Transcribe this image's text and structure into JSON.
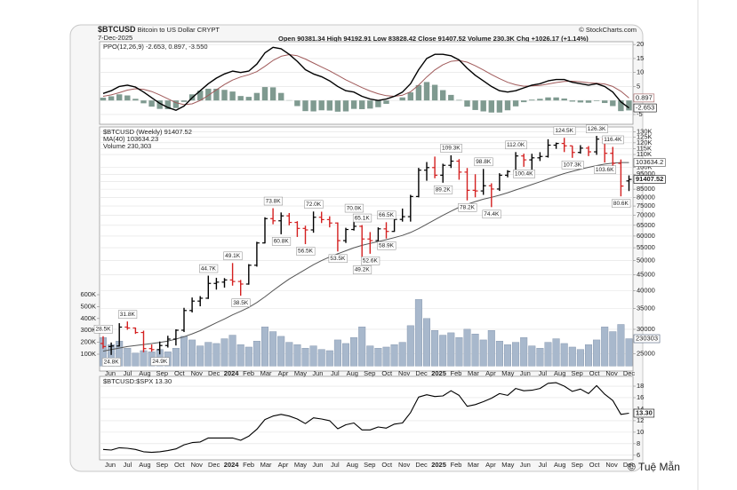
{
  "header": {
    "symbol": "$BTCUSD",
    "name": "Bitcoin to US Dollar",
    "exchange": "CRYPT",
    "date": "7-Dec-2025",
    "quote": "Open 90381.34 High 94192.91 Low 83828.42 Close 91407.52 Volume 230.3K Chg +1026.17 (+1.14%)",
    "source": "© StockCharts.com"
  },
  "watermark": "© Tuệ Mẫn",
  "x_axis": {
    "labels": [
      "Jun",
      "Jul",
      "Aug",
      "Sep",
      "Oct",
      "Nov",
      "Dec",
      "2024",
      "Feb",
      "Mar",
      "Apr",
      "May",
      "Jun",
      "Jul",
      "Aug",
      "Sep",
      "Oct",
      "Nov",
      "Dec",
      "2025",
      "Feb",
      "Mar",
      "Apr",
      "May",
      "Jun",
      "Jul",
      "Aug",
      "Sep",
      "Oct",
      "Nov",
      "Dec"
    ]
  },
  "chart_data": [
    {
      "type": "ppo",
      "legend": "PPO(12,26,9) -2.653, 0.897, -3.550",
      "ylim": [
        -8.5,
        21
      ],
      "yticks": [
        -5,
        0,
        5,
        10,
        15,
        20
      ],
      "grid": true,
      "line": {
        "color": "#000000",
        "last_label": "-2.653",
        "values": [
          2.5,
          3.5,
          5.0,
          5.5,
          4.8,
          3.0,
          1.0,
          -1.0,
          -2.5,
          -3.5,
          -2.0,
          1.0,
          3.5,
          6.0,
          8.0,
          9.5,
          10.5,
          10.0,
          10.5,
          13.0,
          17.0,
          19.0,
          18.5,
          16.5,
          14.0,
          11.0,
          9.5,
          8.5,
          7.0,
          5.0,
          3.5,
          3.0,
          1.5,
          0.5,
          0.0,
          0.5,
          1.5,
          3.0,
          6.0,
          11.0,
          15.0,
          16.5,
          16.5,
          16.0,
          14.5,
          11.5,
          9.0,
          7.0,
          5.0,
          3.5,
          3.0,
          3.5,
          4.5,
          5.5,
          6.0,
          7.0,
          7.5,
          7.5,
          6.5,
          6.0,
          5.5,
          6.0,
          5.0,
          3.0,
          -0.5,
          -2.653
        ]
      },
      "signal": {
        "color": "#a05a5a",
        "last_label": "0.897",
        "values": [
          1.5,
          2.0,
          2.8,
          3.7,
          4.2,
          4.0,
          3.2,
          2.0,
          0.6,
          -0.8,
          -1.5,
          -1.2,
          0.0,
          1.8,
          3.8,
          5.7,
          7.3,
          8.4,
          9.2,
          10.3,
          12.2,
          14.3,
          15.8,
          16.4,
          16.0,
          14.8,
          13.4,
          12.0,
          10.6,
          9.0,
          7.4,
          6.0,
          4.6,
          3.4,
          2.4,
          1.7,
          1.5,
          1.9,
          3.1,
          5.5,
          8.4,
          10.9,
          12.8,
          14.0,
          14.3,
          13.7,
          12.4,
          10.9,
          9.3,
          7.8,
          6.5,
          5.6,
          5.1,
          5.2,
          5.4,
          5.9,
          6.4,
          6.8,
          6.9,
          6.7,
          6.3,
          6.2,
          5.9,
          5.0,
          3.3,
          0.897
        ]
      },
      "histogram": {
        "color": "#7f9a90",
        "values": [
          1.0,
          1.5,
          2.2,
          1.8,
          0.6,
          -1.0,
          -2.2,
          -3.0,
          -3.1,
          -2.7,
          -0.5,
          2.2,
          3.5,
          4.2,
          4.2,
          3.8,
          3.2,
          1.6,
          1.3,
          2.7,
          4.8,
          4.7,
          2.7,
          0.1,
          -2.0,
          -3.8,
          -3.9,
          -3.5,
          -3.6,
          -4.0,
          -3.9,
          -3.0,
          -3.1,
          -2.9,
          -2.4,
          -1.2,
          0.0,
          1.1,
          2.9,
          5.5,
          6.6,
          5.6,
          3.7,
          2.0,
          0.2,
          -2.2,
          -3.4,
          -3.9,
          -4.3,
          -4.3,
          -3.5,
          -2.1,
          -0.6,
          0.3,
          0.6,
          1.1,
          1.1,
          0.7,
          -0.4,
          -0.7,
          -0.8,
          -0.2,
          -0.9,
          -2.0,
          -3.8,
          -3.55
        ]
      }
    },
    {
      "type": "ohlc",
      "legend": "$BTCUSD (Weekly) 91407.52",
      "last_label": "91407.52",
      "log_scale": true,
      "grid": true,
      "color_up": "#000000",
      "color_down": "#d42020",
      "ylim": [
        22000,
        135000
      ],
      "yticks": [
        {
          "value": 130000,
          "label": "130K"
        },
        {
          "value": 125000,
          "label": "125K"
        },
        {
          "value": 120000,
          "label": "120K"
        },
        {
          "value": 115000,
          "label": "115K"
        },
        {
          "value": 110000,
          "label": "110K"
        },
        {
          "value": 100000,
          "label": "100K"
        },
        95000,
        90000,
        85000,
        80000,
        75000,
        70000,
        65000,
        60000,
        55000,
        50000,
        45000,
        40000,
        35000,
        30000,
        25000
      ],
      "open": [
        27000,
        26400,
        26500,
        30500,
        30300,
        29300,
        26000,
        25800,
        26600,
        27900,
        29800,
        34500,
        37000,
        37800,
        42200,
        42600,
        43300,
        42800,
        42000,
        48300,
        57000,
        68300,
        67200,
        69700,
        66400,
        63500,
        62800,
        69000,
        67800,
        66100,
        58000,
        63000,
        64500,
        58700,
        58000,
        63300,
        62100,
        67900,
        69300,
        80500,
        97900,
        99800,
        94300,
        101500,
        104700,
        96500,
        84300,
        83900,
        87200,
        85100,
        94300,
        96900,
        108800,
        105700,
        107300,
        108400,
        117900,
        119400,
        117300,
        111700,
        115300,
        112200,
        123300,
        111000,
        103000,
        90381.34
      ],
      "high": [
        28500,
        27200,
        31400,
        31800,
        30400,
        29700,
        26800,
        27400,
        28600,
        30000,
        35200,
        38000,
        38400,
        44700,
        44000,
        43900,
        49100,
        43300,
        48700,
        57500,
        69000,
        73800,
        71500,
        71200,
        67000,
        64800,
        72000,
        71900,
        69500,
        66400,
        63800,
        70000,
        65100,
        61800,
        64000,
        66500,
        69500,
        73600,
        81500,
        99600,
        104000,
        108300,
        102700,
        109300,
        106300,
        99500,
        95000,
        98800,
        88800,
        95700,
        97900,
        112000,
        110700,
        110600,
        111900,
        123200,
        120200,
        124500,
        117400,
        117900,
        117100,
        126300,
        124100,
        116400,
        106000,
        94192.91
      ],
      "low": [
        26000,
        24800,
        26400,
        29900,
        29000,
        25300,
        25400,
        24900,
        26200,
        26600,
        29400,
        34000,
        35600,
        37600,
        40300,
        40900,
        41500,
        38500,
        41800,
        47800,
        56800,
        65500,
        60800,
        65000,
        59600,
        56500,
        61500,
        66100,
        64000,
        53500,
        57000,
        62500,
        49200,
        52600,
        57500,
        58900,
        61900,
        66800,
        66800,
        80000,
        90500,
        92200,
        89200,
        99500,
        91200,
        78200,
        80000,
        81500,
        74400,
        83900,
        92800,
        96300,
        100400,
        98200,
        104800,
        107500,
        114700,
        112000,
        107300,
        110700,
        108700,
        109700,
        103600,
        98900,
        80600,
        83828.42
      ],
      "close": [
        26400,
        26500,
        30500,
        30300,
        29300,
        26000,
        25800,
        26600,
        27900,
        29800,
        34500,
        37000,
        37800,
        42200,
        42600,
        43300,
        42800,
        42000,
        48300,
        57000,
        68300,
        67200,
        69700,
        66400,
        63500,
        62800,
        69000,
        67800,
        66100,
        58000,
        63000,
        64500,
        58700,
        58000,
        63300,
        62100,
        67900,
        69300,
        80500,
        97900,
        99800,
        94300,
        101500,
        104700,
        96500,
        84300,
        83900,
        87200,
        85100,
        94300,
        96900,
        108800,
        105700,
        107300,
        108400,
        117900,
        119400,
        117300,
        111700,
        115300,
        112200,
        123300,
        111000,
        103000,
        87000,
        91407.52
      ],
      "ma": {
        "legend": "MA(40) 103634.23",
        "last_label": "103634.2",
        "color": "#555555",
        "values": [
          25500,
          25800,
          26100,
          26400,
          26600,
          26800,
          27000,
          27200,
          27500,
          27900,
          28400,
          29000,
          29700,
          30600,
          31500,
          32400,
          33400,
          34300,
          35300,
          36600,
          38200,
          40000,
          41800,
          43600,
          45200,
          46800,
          48500,
          50000,
          51400,
          52600,
          53800,
          55000,
          56000,
          56800,
          57600,
          58400,
          59300,
          60300,
          61600,
          63400,
          65500,
          67700,
          70000,
          72200,
          74300,
          76000,
          77500,
          78900,
          80000,
          81300,
          82800,
          84500,
          86200,
          88000,
          89800,
          91700,
          93700,
          95500,
          97100,
          98600,
          100000,
          101300,
          102400,
          103200,
          103600,
          103634.23
        ]
      },
      "volume": {
        "legend": "Volume 230,303",
        "last_label": "230303",
        "color": "#a8b8cc",
        "ylim": [
          0,
          700000
        ],
        "yticks": [
          {
            "value": 100000,
            "label": "100K"
          },
          {
            "value": 200000,
            "label": "200K"
          },
          {
            "value": 300000,
            "label": "300K"
          },
          {
            "value": 400000,
            "label": "400K"
          },
          {
            "value": 500000,
            "label": "500K"
          },
          {
            "value": 600000,
            "label": "600K"
          }
        ],
        "values": [
          240000,
          180000,
          210000,
          150000,
          110000,
          130000,
          120000,
          140000,
          120000,
          150000,
          250000,
          220000,
          170000,
          200000,
          190000,
          230000,
          260000,
          180000,
          160000,
          210000,
          330000,
          290000,
          250000,
          200000,
          180000,
          150000,
          170000,
          140000,
          130000,
          220000,
          190000,
          240000,
          330000,
          170000,
          150000,
          160000,
          180000,
          200000,
          340000,
          560000,
          400000,
          300000,
          260000,
          280000,
          240000,
          310000,
          270000,
          220000,
          300000,
          210000,
          180000,
          200000,
          240000,
          170000,
          150000,
          200000,
          230000,
          190000,
          160000,
          140000,
          180000,
          220000,
          330000,
          290000,
          350000,
          230303
        ]
      },
      "annotations": [
        {
          "label": "28.5K",
          "value": 28500
        },
        {
          "label": "24.8K",
          "value": 24800
        },
        {
          "label": "31.8K",
          "value": 31800
        },
        {
          "label": "24.9K",
          "value": 24900
        },
        {
          "label": "44.7K",
          "value": 44700
        },
        {
          "label": "49.1K",
          "value": 49100
        },
        {
          "label": "38.5K",
          "value": 38500
        },
        {
          "label": "73.8K",
          "value": 73800
        },
        {
          "label": "60.8K",
          "value": 60800
        },
        {
          "label": "72.0K",
          "value": 72000
        },
        {
          "label": "56.5K",
          "value": 56500
        },
        {
          "label": "70.0K",
          "value": 70000
        },
        {
          "label": "65.1K",
          "value": 65100
        },
        {
          "label": "53.5K",
          "value": 53500
        },
        {
          "label": "49.2K",
          "value": 49200
        },
        {
          "label": "66.5K",
          "value": 66500
        },
        {
          "label": "52.6K",
          "value": 52600
        },
        {
          "label": "58.9K",
          "value": 58900
        },
        {
          "label": "109.3K",
          "value": 109300
        },
        {
          "label": "89.2K",
          "value": 89200
        },
        {
          "label": "98.8K",
          "value": 98800
        },
        {
          "label": "78.2K",
          "value": 78200
        },
        {
          "label": "74.4K",
          "value": 74400
        },
        {
          "label": "100.4K",
          "value": 100400
        },
        {
          "label": "112.0K",
          "value": 112000
        },
        {
          "label": "107.3K",
          "value": 107300
        },
        {
          "label": "124.5K",
          "value": 124500
        },
        {
          "label": "103.6K",
          "value": 103600
        },
        {
          "label": "126.3K",
          "value": 126300
        },
        {
          "label": "116.4K",
          "value": 116400
        },
        {
          "label": "80.6K",
          "value": 80600
        }
      ]
    },
    {
      "type": "line",
      "legend": "$BTCUSD:$SPX 13.30",
      "last_label": "13.30",
      "color": "#000000",
      "grid": true,
      "ylim": [
        5.2,
        19.7
      ],
      "yticks": [
        6,
        8,
        10,
        12,
        14,
        16,
        18
      ],
      "values": [
        7.0,
        6.9,
        7.3,
        7.2,
        7.0,
        6.6,
        6.5,
        6.6,
        6.8,
        7.1,
        7.8,
        8.2,
        8.3,
        9.0,
        9.0,
        9.0,
        9.0,
        8.6,
        9.3,
        10.5,
        12.2,
        12.8,
        13.1,
        12.8,
        12.3,
        11.5,
        12.5,
        12.3,
        12.0,
        10.6,
        11.3,
        11.6,
        10.4,
        10.4,
        10.9,
        10.7,
        11.4,
        11.6,
        13.4,
        16.1,
        16.5,
        16.2,
        16.3,
        17.2,
        16.4,
        14.5,
        14.8,
        15.3,
        15.9,
        16.7,
        16.4,
        17.6,
        17.2,
        17.3,
        17.6,
        18.5,
        18.6,
        18.0,
        17.1,
        17.5,
        16.7,
        18.1,
        16.6,
        15.5,
        13.1,
        13.3
      ]
    }
  ]
}
